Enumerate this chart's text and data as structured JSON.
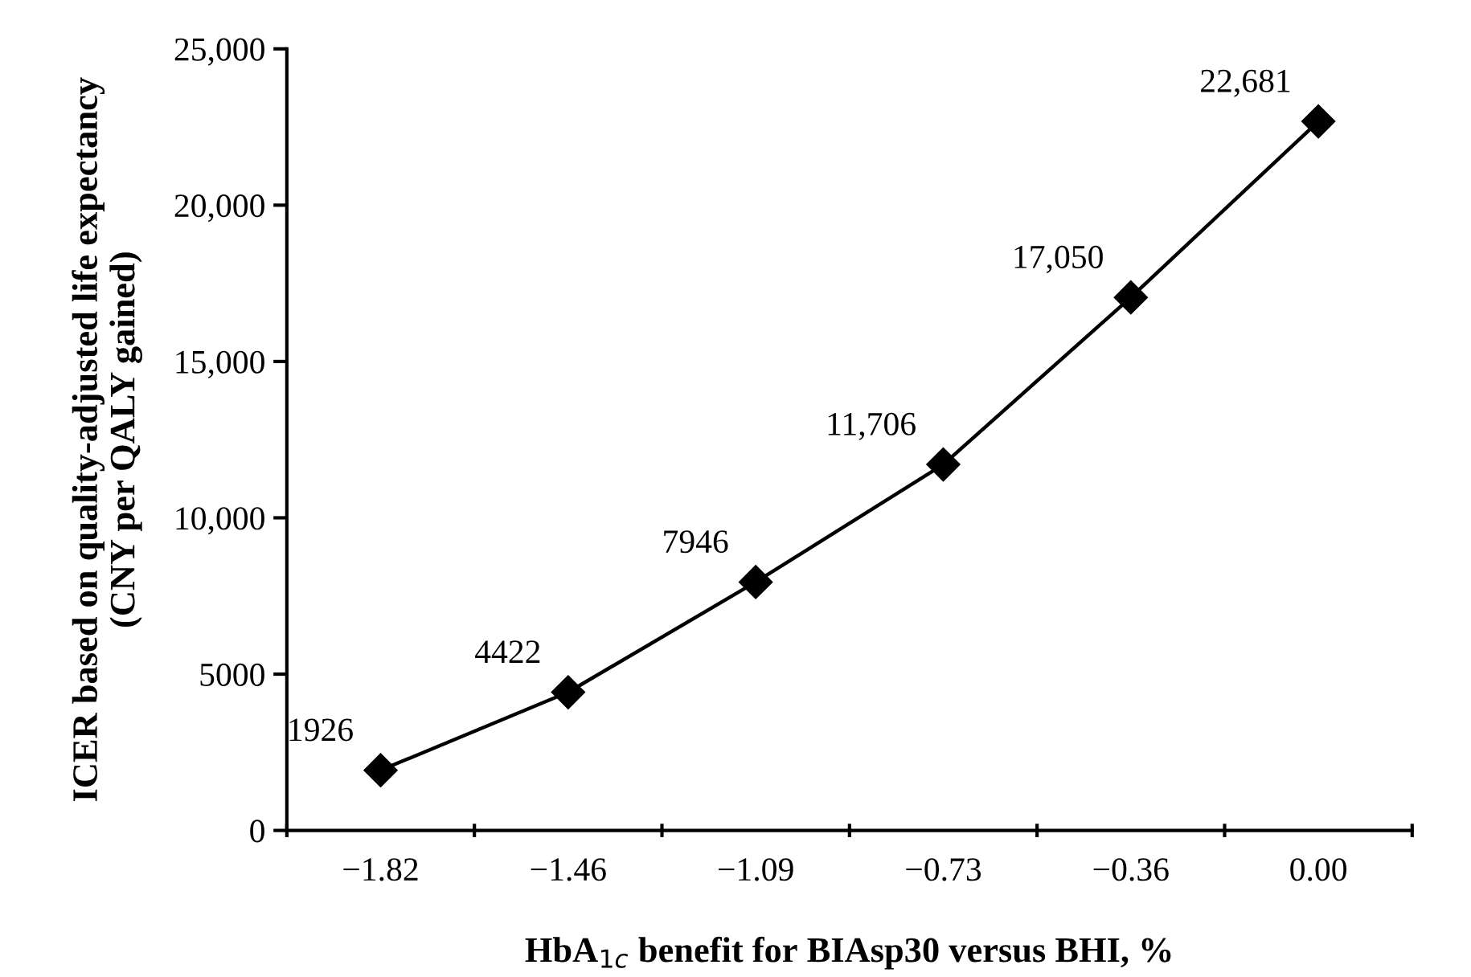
{
  "chart_data": {
    "type": "line",
    "xlabel": "HbA$_{1c}$ benefit for BIAsp30 versus BHI, %",
    "ylabel": "ICER based on quality-adjusted life expectancy\n(CNY per QALY gained)",
    "categories": [
      "−1.82",
      "−1.46",
      "−1.09",
      "−0.73",
      "−0.36",
      "0.00"
    ],
    "series": [
      {
        "color": "#000000",
        "values": [
          1926,
          4422,
          7946,
          11706,
          17050,
          22681
        ],
        "value_labels": [
          "1926",
          "4422",
          "7946",
          "11,706",
          "17,050",
          "22,681"
        ]
      }
    ],
    "ylim": [
      0,
      25000
    ],
    "yticks": [
      0,
      {
        "value": 5000,
        "label": "5000"
      },
      {
        "value": 10000,
        "label": "10,000"
      },
      {
        "value": 15000,
        "label": "15,000"
      },
      {
        "value": 20000,
        "label": "20,000"
      },
      {
        "value": 25000,
        "label": "25,000"
      }
    ],
    "marker": "diamond",
    "line_style": "solid"
  }
}
